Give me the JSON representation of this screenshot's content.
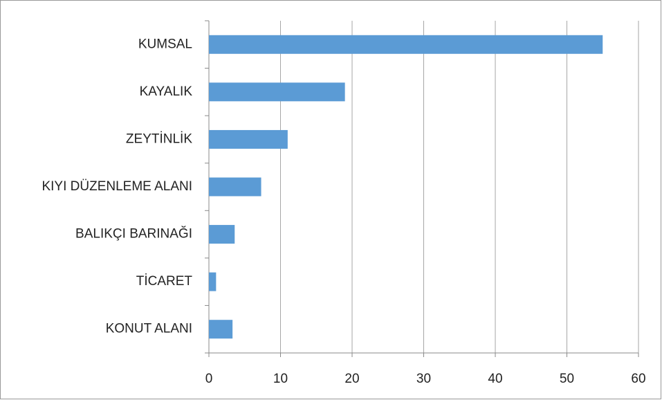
{
  "chart_data": {
    "type": "barh",
    "categories": [
      "KUMSAL",
      "KAYALIK",
      "ZEYTİNLİK",
      "KIYI DÜZENLEME ALANI",
      "BALIKÇI BARINAĞI",
      "TİCARET",
      "KONUT ALANI"
    ],
    "values": [
      55,
      19,
      11,
      7.3,
      3.6,
      1,
      3.3
    ],
    "color": "#5b9bd5",
    "xlim": [
      0,
      60
    ],
    "xticks": [
      0,
      10,
      20,
      30,
      40,
      50,
      60
    ],
    "grid": true
  }
}
